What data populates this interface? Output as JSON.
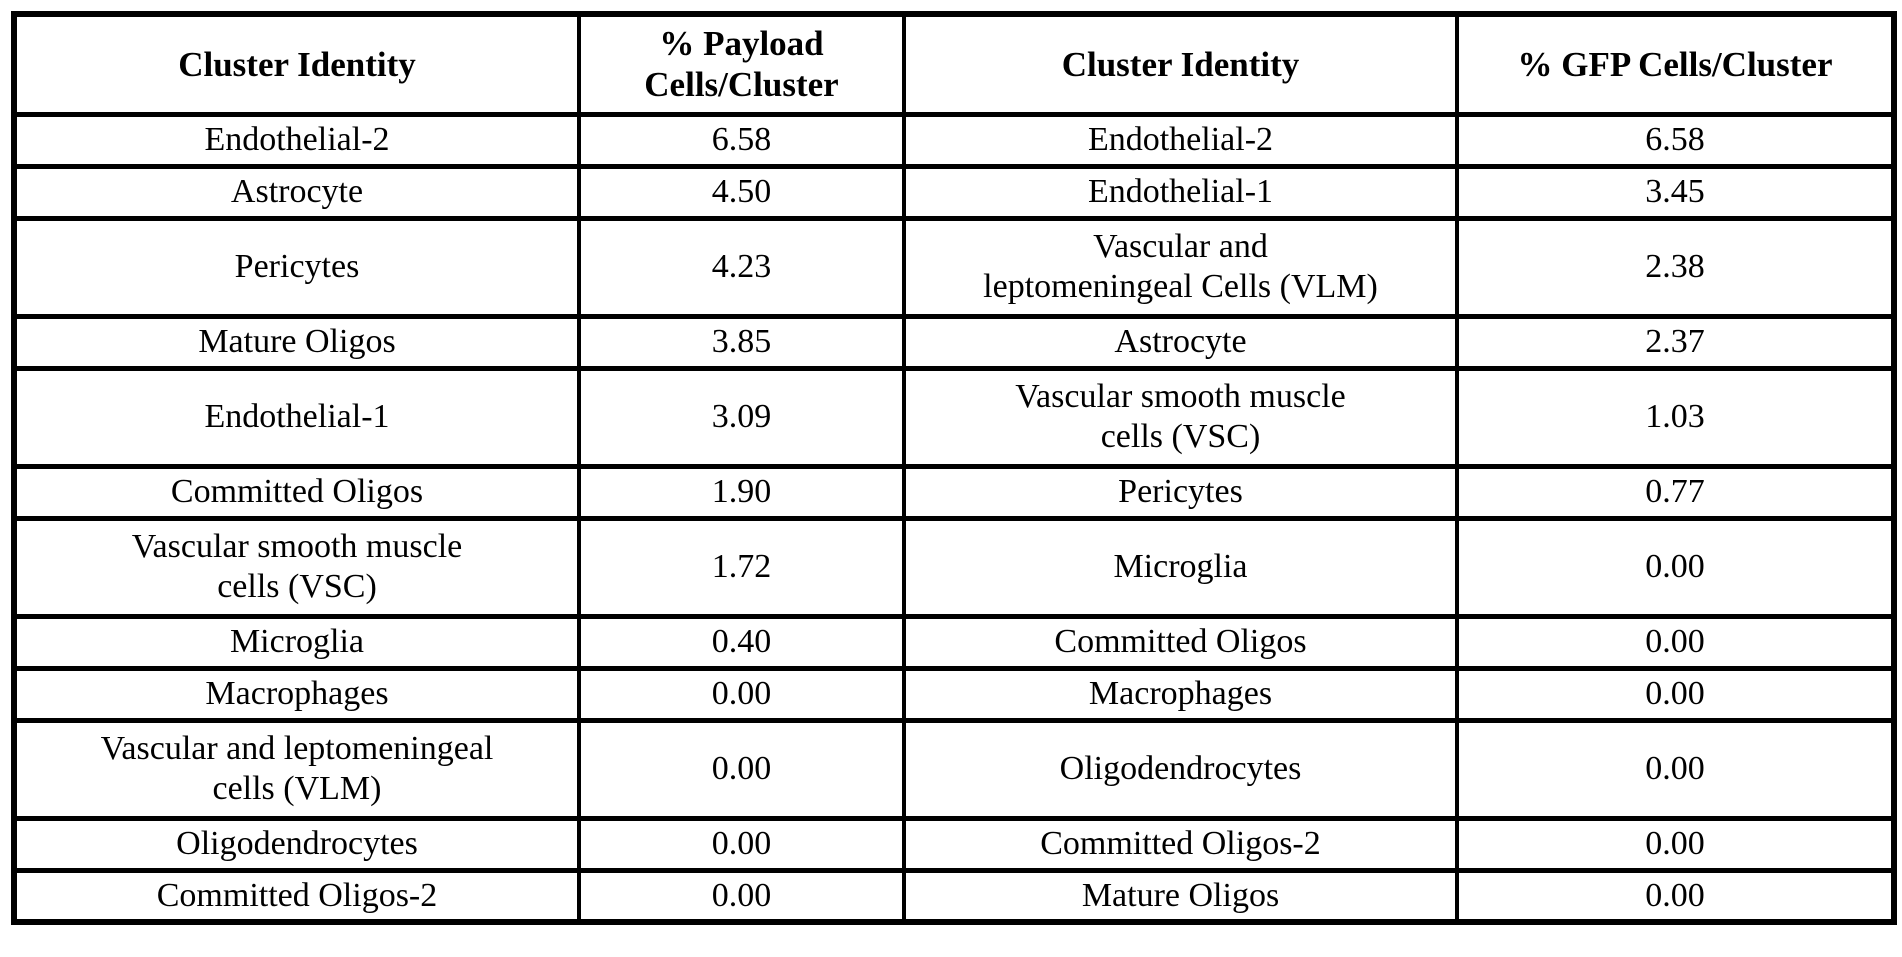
{
  "table": {
    "headers": [
      {
        "label": "Cluster Identity"
      },
      {
        "label": "% Payload\nCells/Cluster"
      },
      {
        "label": "Cluster Identity"
      },
      {
        "label": "% GFP Cells/Cluster"
      }
    ],
    "rows": [
      {
        "c0": "Endothelial-2",
        "c1": "6.58",
        "c2": "Endothelial-2",
        "c3": "6.58"
      },
      {
        "c0": "Astrocyte",
        "c1": "4.50",
        "c2": "Endothelial-1",
        "c3": "3.45"
      },
      {
        "c0": "Pericytes",
        "c1": "4.23",
        "c2": "Vascular and\nleptomeningeal Cells (VLM)",
        "c3": "2.38"
      },
      {
        "c0": "Mature Oligos",
        "c1": "3.85",
        "c2": "Astrocyte",
        "c3": "2.37"
      },
      {
        "c0": "Endothelial-1",
        "c1": "3.09",
        "c2": "Vascular smooth muscle\ncells (VSC)",
        "c3": "1.03"
      },
      {
        "c0": "Committed Oligos",
        "c1": "1.90",
        "c2": "Pericytes",
        "c3": "0.77"
      },
      {
        "c0": "Vascular smooth muscle\ncells (VSC)",
        "c1": "1.72",
        "c2": "Microglia",
        "c3": "0.00"
      },
      {
        "c0": "Microglia",
        "c1": "0.40",
        "c2": "Committed Oligos",
        "c3": "0.00"
      },
      {
        "c0": "Macrophages",
        "c1": "0.00",
        "c2": "Macrophages",
        "c3": "0.00"
      },
      {
        "c0": "Vascular and leptomeningeal\ncells (VLM)",
        "c1": "0.00",
        "c2": "Oligodendrocytes",
        "c3": "0.00"
      },
      {
        "c0": "Oligodendrocytes",
        "c1": "0.00",
        "c2": "Committed Oligos-2",
        "c3": "0.00"
      },
      {
        "c0": "Committed Oligos-2",
        "c1": "0.00",
        "c2": "Mature Oligos",
        "c3": "0.00"
      }
    ]
  }
}
